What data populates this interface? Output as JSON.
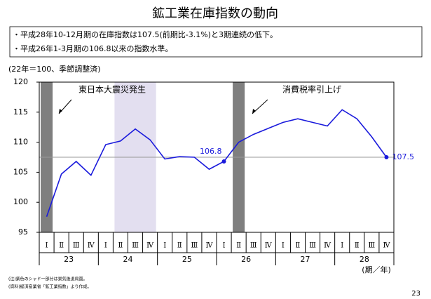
{
  "chart_data": {
    "type": "line",
    "title": "鉱工業在庫指数の動向",
    "bullets": [
      "・平成28年10-12月期の在庫指数は107.5(前期比-3.1%)と3期連続の低下。",
      "・平成26年1-3月期の106.8以来の指数水準。"
    ],
    "unit_label": "(22年＝100、季節調整済)",
    "x_label": "(期／年)",
    "categories": [
      "Ⅰ",
      "Ⅱ",
      "Ⅲ",
      "Ⅳ",
      "Ⅰ",
      "Ⅱ",
      "Ⅲ",
      "Ⅳ",
      "Ⅰ",
      "Ⅱ",
      "Ⅲ",
      "Ⅳ",
      "Ⅰ",
      "Ⅱ",
      "Ⅲ",
      "Ⅳ",
      "Ⅰ",
      "Ⅱ",
      "Ⅲ",
      "Ⅳ",
      "Ⅰ",
      "Ⅱ",
      "Ⅲ",
      "Ⅳ"
    ],
    "years": [
      "23",
      "24",
      "25",
      "26",
      "27",
      "28"
    ],
    "values": [
      97.6,
      104.7,
      106.8,
      104.5,
      109.6,
      110.2,
      112.2,
      110.4,
      107.2,
      107.6,
      107.5,
      105.5,
      106.8,
      110.0,
      111.3,
      112.3,
      113.3,
      113.9,
      113.3,
      112.7,
      115.4,
      113.9,
      110.9,
      107.5
    ],
    "value_labels": [
      null,
      null,
      null,
      null,
      null,
      null,
      null,
      null,
      null,
      null,
      null,
      null,
      "106.8",
      null,
      null,
      null,
      null,
      null,
      null,
      null,
      null,
      null,
      null,
      "107.5"
    ],
    "color": "#1a1adc",
    "ylim": [
      95,
      120
    ],
    "yticks": [
      95,
      100,
      105,
      110,
      115,
      120
    ],
    "reference_line": 107.5,
    "bands": [
      {
        "from": 0,
        "to": 0,
        "color": "#7f7f7f"
      },
      {
        "from": 5,
        "to": 7,
        "color": "#e3dff0"
      },
      {
        "from": 13,
        "to": 13,
        "color": "#7f7f7f"
      }
    ],
    "annotations": [
      "東日本大震災発生",
      "消費税率引上げ"
    ],
    "notes": [
      "(注)紫色のシャド一部分は景気後退局面。",
      "(資料)経済産業省「鉱工業指数」より作成。"
    ],
    "page_number": "23"
  }
}
